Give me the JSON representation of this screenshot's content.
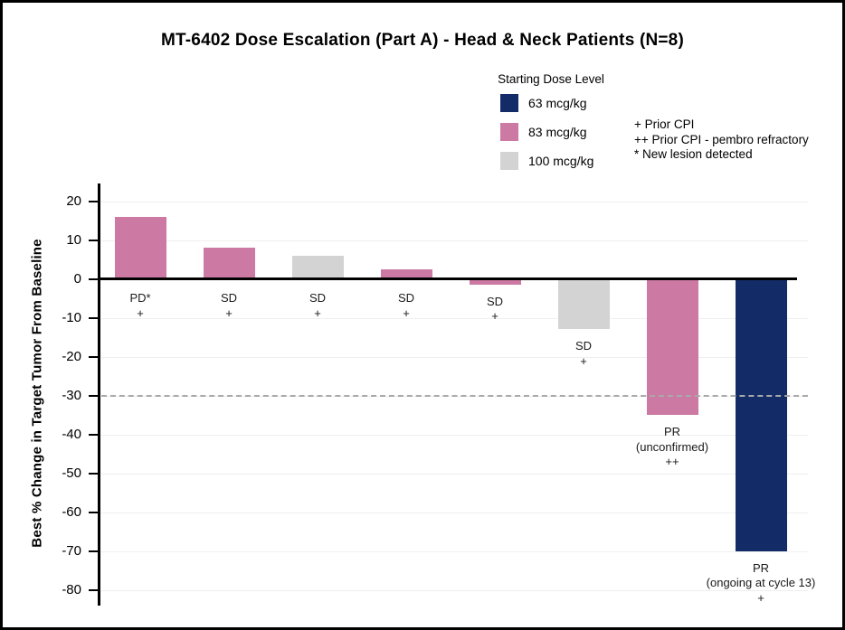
{
  "title": "MT-6402 Dose Escalation (Part A) - Head & Neck Patients (N=8)",
  "legend": {
    "title": "Starting Dose Level",
    "items": [
      {
        "label": "63 mcg/kg",
        "color": "#132B66"
      },
      {
        "label": "83 mcg/kg",
        "color": "#CC7AA3"
      },
      {
        "label": "100 mcg/kg",
        "color": "#D3D3D3"
      }
    ]
  },
  "footnotes": [
    "+ Prior CPI",
    "++ Prior CPI - pembro refractory",
    "* New lesion detected"
  ],
  "colors": {
    "axis": "#000000",
    "reference_line": "#A9A9A9",
    "gridline": "#EFEFEF",
    "background": "#FFFFFF"
  },
  "chart_data": {
    "type": "bar",
    "subtype": "waterfall",
    "title": "MT-6402 Dose Escalation (Part A) - Head & Neck Patients (N=8)",
    "xlabel": "",
    "ylabel": "Best % Change in Target Tumor From Baseline",
    "ylim": [
      -80,
      20
    ],
    "ytick_step": 10,
    "ytick_labels": [
      "20",
      "10",
      "0",
      "-10",
      "-20",
      "-30",
      "-40",
      "-50",
      "-60",
      "-70",
      "-80"
    ],
    "reference_line_y": -30,
    "grid": "horizontal-faint",
    "legend_position": "top-center",
    "bars": [
      {
        "value": 16,
        "dose": "83 mcg/kg",
        "response": "PD*",
        "marker": "+",
        "label_lines": [
          "PD*",
          "+"
        ]
      },
      {
        "value": 8,
        "dose": "83 mcg/kg",
        "response": "SD",
        "marker": "+",
        "label_lines": [
          "SD",
          "+"
        ]
      },
      {
        "value": 6,
        "dose": "100 mcg/kg",
        "response": "SD",
        "marker": "+",
        "label_lines": [
          "SD",
          "+"
        ]
      },
      {
        "value": 2.5,
        "dose": "83 mcg/kg",
        "response": "SD",
        "marker": "+",
        "label_lines": [
          "SD",
          "+"
        ]
      },
      {
        "value": -1.5,
        "dose": "83 mcg/kg",
        "response": "SD",
        "marker": "+",
        "label_lines": [
          "SD",
          "+"
        ]
      },
      {
        "value": -13,
        "dose": "100 mcg/kg",
        "response": "SD",
        "marker": "+",
        "label_lines": [
          "SD",
          "+"
        ]
      },
      {
        "value": -35,
        "dose": "83 mcg/kg",
        "response": "PR (unconfirmed)",
        "marker": "++",
        "label_lines": [
          "PR",
          "(unconfirmed)",
          "++"
        ]
      },
      {
        "value": -70,
        "dose": "63 mcg/kg",
        "response": "PR (ongoing at cycle 13)",
        "marker": "+",
        "label_lines": [
          "PR",
          "(ongoing at cycle 13)",
          "+"
        ]
      }
    ]
  }
}
